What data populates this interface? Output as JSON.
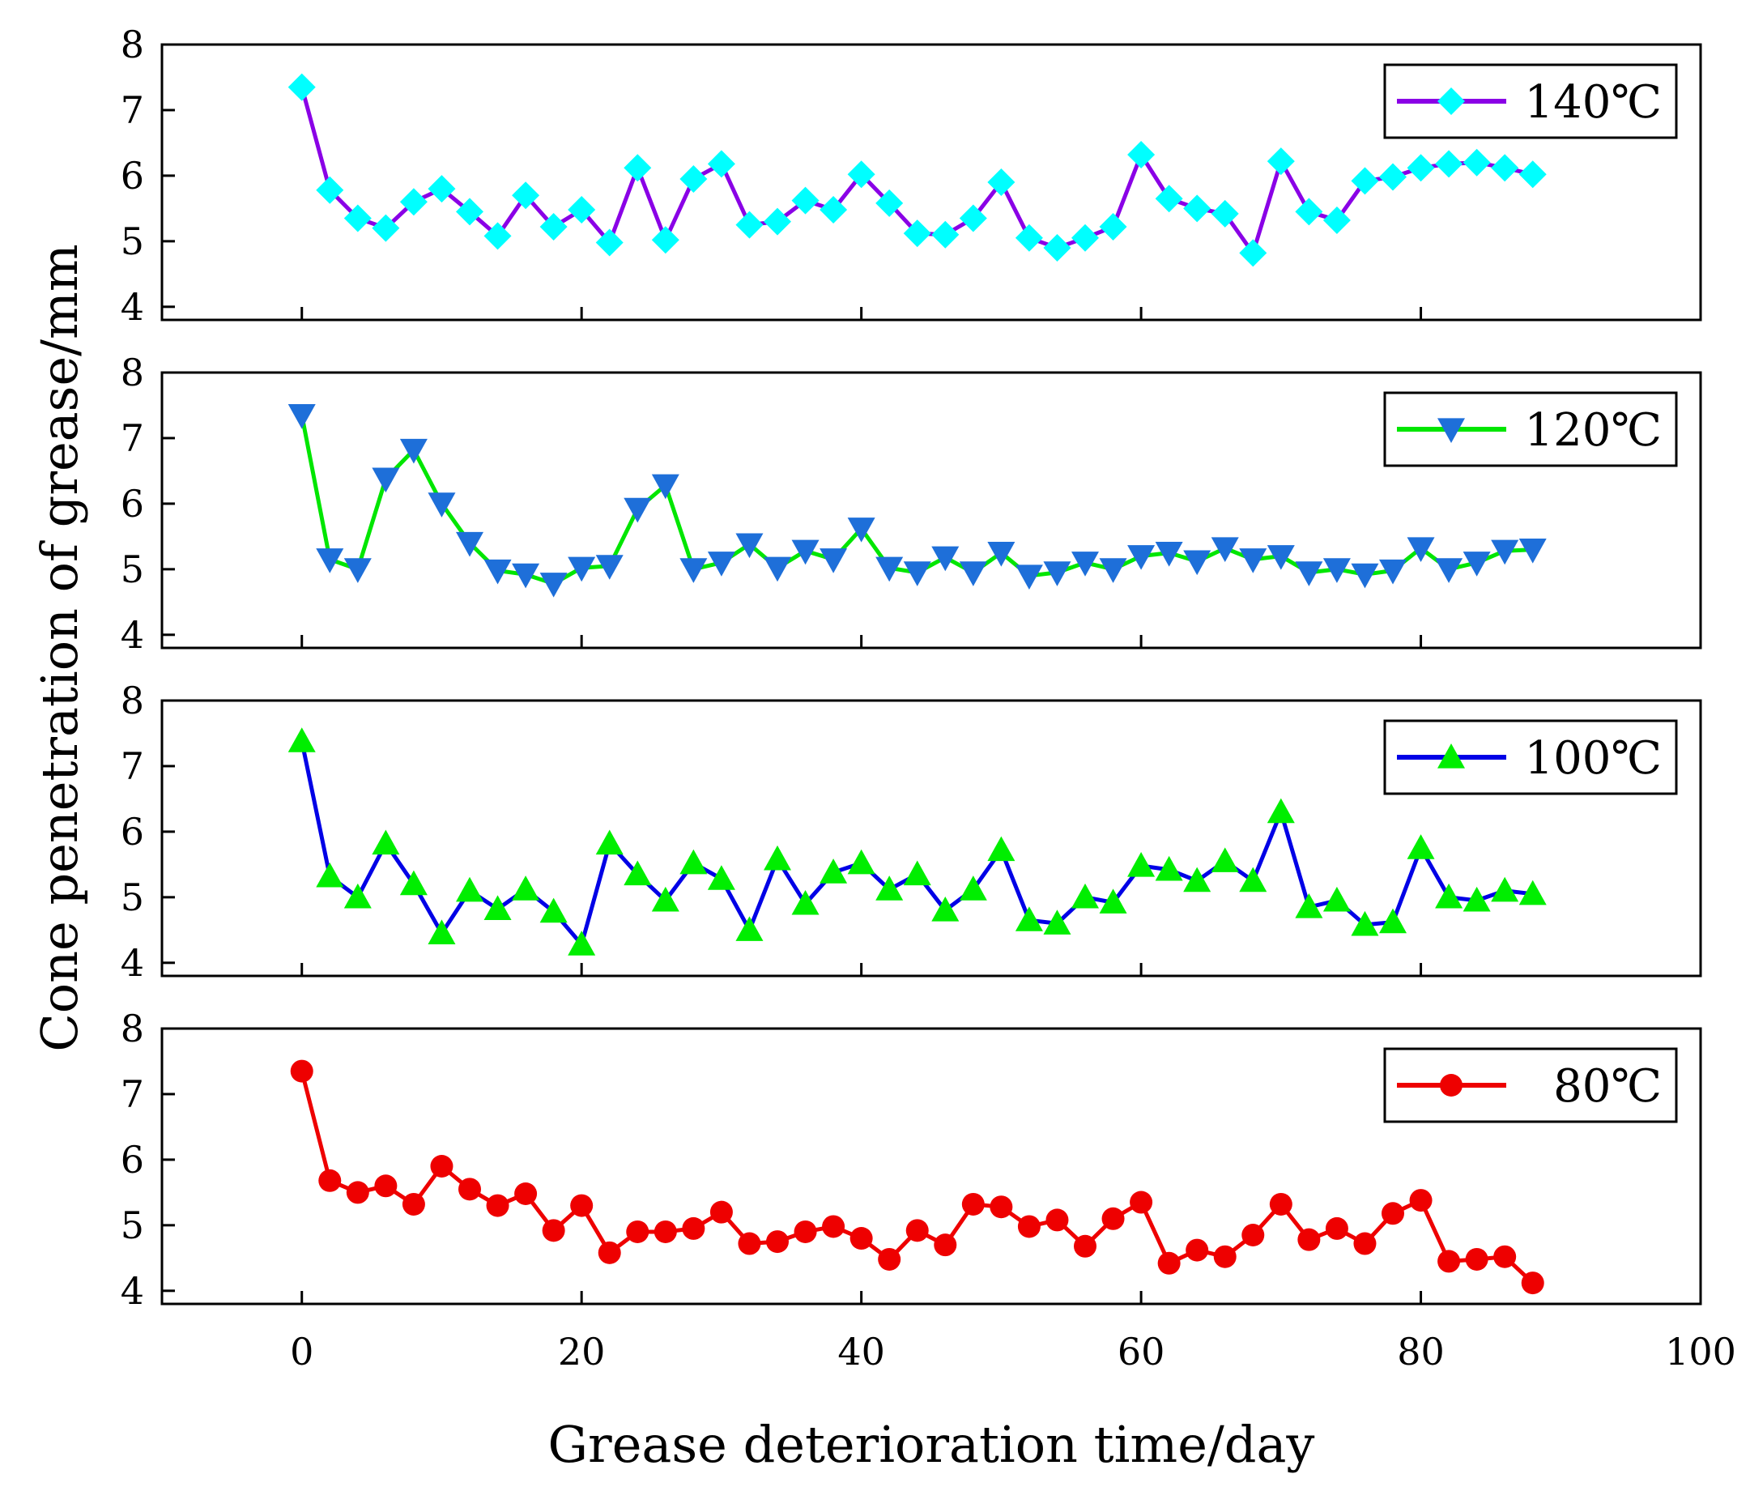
{
  "chart_data": {
    "type": "line",
    "xlabel": "Grease deterioration time/day",
    "ylabel": "Cone penetration of grease/mm",
    "xlim": [
      -10,
      100
    ],
    "xticks": [
      0,
      20,
      40,
      60,
      80,
      100
    ],
    "ylim": [
      3.8,
      8
    ],
    "yticks": [
      4,
      5,
      6,
      7,
      8
    ],
    "x": [
      0,
      2,
      4,
      6,
      8,
      10,
      12,
      14,
      16,
      18,
      20,
      22,
      24,
      26,
      28,
      30,
      32,
      34,
      36,
      38,
      40,
      42,
      44,
      46,
      48,
      50,
      52,
      54,
      56,
      58,
      60,
      62,
      64,
      66,
      68,
      70,
      72,
      74,
      76,
      78,
      80,
      82,
      84,
      86,
      88
    ],
    "panels": [
      {
        "name": "140℃",
        "line_color": "#8a00e6",
        "marker_color": "#00ffff",
        "marker": "diamond",
        "values": [
          7.35,
          5.78,
          5.35,
          5.2,
          5.6,
          5.8,
          5.45,
          5.08,
          5.7,
          5.22,
          5.48,
          4.98,
          6.12,
          5.02,
          5.95,
          6.18,
          5.25,
          5.3,
          5.62,
          5.48,
          6.02,
          5.58,
          5.12,
          5.1,
          5.35,
          5.9,
          5.05,
          4.9,
          5.05,
          5.22,
          6.32,
          5.65,
          5.5,
          5.42,
          4.82,
          6.22,
          5.45,
          5.32,
          5.92,
          5.98,
          6.12,
          6.18,
          6.2,
          6.12,
          6.02
        ]
      },
      {
        "name": "120℃",
        "line_color": "#00e600",
        "marker_color": "#1e6fd9",
        "marker": "triangle-down",
        "values": [
          7.35,
          5.15,
          5.0,
          6.38,
          6.82,
          6.0,
          5.4,
          4.98,
          4.92,
          4.78,
          5.02,
          5.05,
          5.92,
          6.28,
          5.0,
          5.1,
          5.38,
          5.02,
          5.28,
          5.15,
          5.62,
          5.02,
          4.95,
          5.18,
          4.95,
          5.25,
          4.9,
          4.95,
          5.1,
          5.0,
          5.2,
          5.25,
          5.12,
          5.32,
          5.15,
          5.2,
          4.95,
          5.0,
          4.92,
          4.98,
          5.32,
          5.0,
          5.1,
          5.28,
          5.3
        ]
      },
      {
        "name": "100℃",
        "line_color": "#0000e6",
        "marker_color": "#00ee00",
        "marker": "triangle-up",
        "values": [
          7.38,
          5.32,
          5.0,
          5.82,
          5.2,
          4.45,
          5.1,
          4.82,
          5.12,
          4.78,
          4.28,
          5.82,
          5.35,
          4.95,
          5.52,
          5.28,
          4.5,
          5.58,
          4.9,
          5.38,
          5.52,
          5.12,
          5.35,
          4.8,
          5.12,
          5.72,
          4.65,
          4.6,
          5.0,
          4.92,
          5.48,
          5.42,
          5.25,
          5.55,
          5.25,
          6.3,
          4.85,
          4.95,
          4.58,
          4.62,
          5.75,
          5.0,
          4.95,
          5.1,
          5.05
        ]
      },
      {
        "name": "80℃",
        "line_color": "#ee0000",
        "marker_color": "#ee0000",
        "marker": "circle",
        "values": [
          7.35,
          5.68,
          5.5,
          5.6,
          5.32,
          5.9,
          5.55,
          5.3,
          5.48,
          4.92,
          5.3,
          4.58,
          4.9,
          4.9,
          4.95,
          5.2,
          4.72,
          4.75,
          4.9,
          4.98,
          4.8,
          4.48,
          4.92,
          4.7,
          5.32,
          5.28,
          4.98,
          5.08,
          4.68,
          5.1,
          5.35,
          4.42,
          4.62,
          4.52,
          4.85,
          5.32,
          4.78,
          4.95,
          4.72,
          5.18,
          5.38,
          4.45,
          4.48,
          4.52,
          4.12
        ]
      }
    ]
  }
}
